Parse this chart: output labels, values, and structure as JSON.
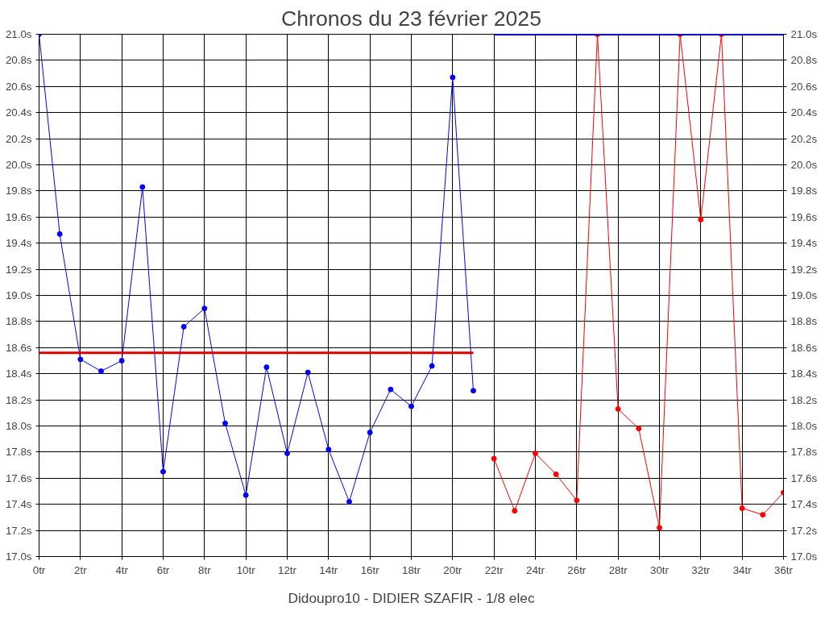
{
  "chart_data": {
    "type": "line",
    "title": "Chronos du 23 février 2025",
    "annotations": [
      "Didoupro10 - DIDIER SZAFIR - 1/8 elec"
    ],
    "marker": "circle",
    "grid": true,
    "series": [
      {
        "color": "#0000ff",
        "x": [
          0,
          1,
          2,
          3,
          4,
          5,
          6,
          7,
          8,
          9,
          10,
          11,
          12,
          13,
          14,
          15,
          16,
          17,
          18,
          19,
          20,
          21
        ],
        "values": [
          21.0,
          19.47,
          18.51,
          18.42,
          18.5,
          19.83,
          17.65,
          18.76,
          18.9,
          18.02,
          17.47,
          18.45,
          17.79,
          18.41,
          17.82,
          17.42,
          17.95,
          18.28,
          18.15,
          18.46,
          20.67,
          18.27
        ]
      },
      {
        "color": "#ff0000",
        "x": [
          22,
          23,
          24,
          25,
          26,
          27,
          28,
          29,
          30,
          31,
          32,
          33,
          34,
          35,
          36
        ],
        "values": [
          17.75,
          17.35,
          17.79,
          17.63,
          17.43,
          21.0,
          18.13,
          17.98,
          17.22,
          21.0,
          19.58,
          21.0,
          17.37,
          17.32,
          17.49
        ]
      },
      {
        "color": "#dd0000",
        "marker": "none",
        "x": [
          0,
          21
        ],
        "values": [
          18.56,
          18.56
        ]
      },
      {
        "color": "#0000ff",
        "marker": "none",
        "x": [
          22,
          36
        ],
        "values": [
          21.0,
          21.0
        ]
      }
    ],
    "xlim": [
      0,
      36
    ],
    "xticks": [
      {
        "value": 0,
        "label": "0tr"
      },
      {
        "value": 2,
        "label": "2tr"
      },
      {
        "value": 4,
        "label": "4tr"
      },
      {
        "value": 6,
        "label": "6tr"
      },
      {
        "value": 8,
        "label": "8tr"
      },
      {
        "value": 10,
        "label": "10tr"
      },
      {
        "value": 12,
        "label": "12tr"
      },
      {
        "value": 14,
        "label": "14tr"
      },
      {
        "value": 16,
        "label": "16tr"
      },
      {
        "value": 18,
        "label": "18tr"
      },
      {
        "value": 20,
        "label": "20tr"
      },
      {
        "value": 22,
        "label": "22tr"
      },
      {
        "value": 24,
        "label": "24tr"
      },
      {
        "value": 26,
        "label": "26tr"
      },
      {
        "value": 28,
        "label": "28tr"
      },
      {
        "value": 30,
        "label": "30tr"
      },
      {
        "value": 32,
        "label": "32tr"
      },
      {
        "value": 34,
        "label": "34tr"
      },
      {
        "value": 36,
        "label": "36tr"
      }
    ],
    "ylim": [
      17.0,
      21.0
    ],
    "yticks": [
      {
        "value": 17.0,
        "label": "17.0s"
      },
      {
        "value": 17.2,
        "label": "17.2s"
      },
      {
        "value": 17.4,
        "label": "17.4s"
      },
      {
        "value": 17.6,
        "label": "17.6s"
      },
      {
        "value": 17.8,
        "label": "17.8s"
      },
      {
        "value": 18.0,
        "label": "18.0s"
      },
      {
        "value": 18.2,
        "label": "18.2s"
      },
      {
        "value": 18.4,
        "label": "18.4s"
      },
      {
        "value": 18.6,
        "label": "18.6s"
      },
      {
        "value": 18.8,
        "label": "18.8s"
      },
      {
        "value": 19.0,
        "label": "19.0s"
      },
      {
        "value": 19.2,
        "label": "19.2s"
      },
      {
        "value": 19.4,
        "label": "19.4s"
      },
      {
        "value": 19.6,
        "label": "19.6s"
      },
      {
        "value": 19.8,
        "label": "19.8s"
      },
      {
        "value": 20.0,
        "label": "20.0s"
      },
      {
        "value": 20.2,
        "label": "20.2s"
      },
      {
        "value": 20.4,
        "label": "20.4s"
      },
      {
        "value": 20.6,
        "label": "20.6s"
      },
      {
        "value": 20.8,
        "label": "20.8s"
      },
      {
        "value": 21.0,
        "label": "21.0s"
      }
    ],
    "y2lim": [
      17.0,
      21.0
    ],
    "y2ticks": [
      {
        "value": 17.0,
        "label": "17.0s"
      },
      {
        "value": 17.2,
        "label": "17.2s"
      },
      {
        "value": 17.4,
        "label": "17.4s"
      },
      {
        "value": 17.6,
        "label": "17.6s"
      },
      {
        "value": 17.8,
        "label": "17.8s"
      },
      {
        "value": 18.0,
        "label": "18.0s"
      },
      {
        "value": 18.2,
        "label": "18.2s"
      },
      {
        "value": 18.4,
        "label": "18.4s"
      },
      {
        "value": 18.6,
        "label": "18.6s"
      },
      {
        "value": 18.8,
        "label": "18.8s"
      },
      {
        "value": 19.0,
        "label": "19.0s"
      },
      {
        "value": 19.2,
        "label": "19.2s"
      },
      {
        "value": 19.4,
        "label": "19.4s"
      },
      {
        "value": 19.6,
        "label": "19.6s"
      },
      {
        "value": 19.8,
        "label": "19.8s"
      },
      {
        "value": 20.0,
        "label": "20.0s"
      },
      {
        "value": 20.2,
        "label": "20.2s"
      },
      {
        "value": 20.4,
        "label": "20.4s"
      },
      {
        "value": 20.6,
        "label": "20.6s"
      },
      {
        "value": 20.8,
        "label": "20.8s"
      },
      {
        "value": 21.0,
        "label": "21.0s"
      }
    ]
  }
}
